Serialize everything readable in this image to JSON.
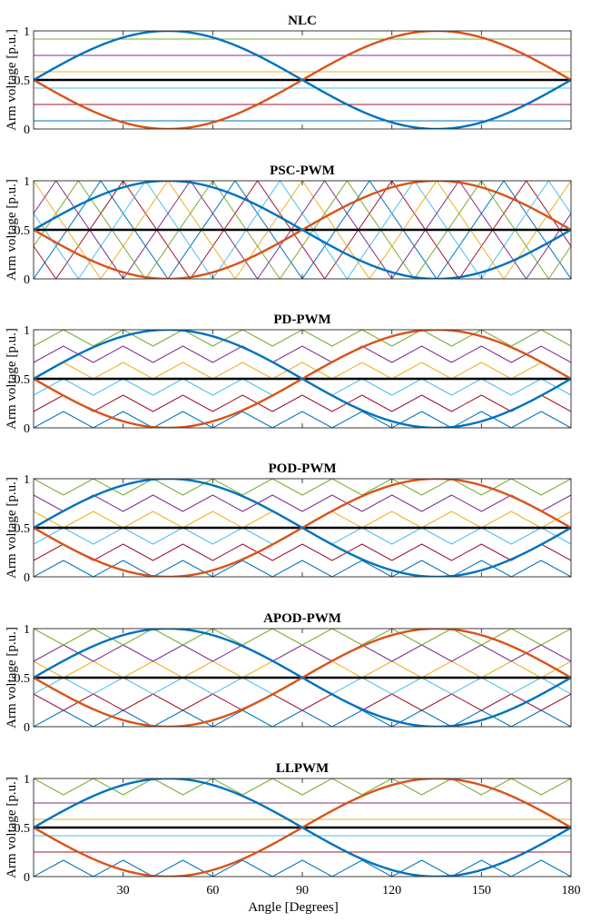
{
  "figure": {
    "xlabel": "Angle [Degrees]",
    "ylabel": "Arm voltage [p.u.]"
  },
  "colors": {
    "upper_arm": "#0072BD",
    "lower_arm": "#D95319",
    "reference": "#000000",
    "carrier_1": "#0072BD",
    "carrier_2": "#A2142F",
    "carrier_3": "#4DBEEE",
    "carrier_4": "#EDB120",
    "carrier_5": "#7E2F8E",
    "carrier_6": "#77AC30"
  },
  "chart_data": [
    {
      "type": "line",
      "title": "NLC",
      "carrier_scheme": "nlc_levels",
      "levels": [
        0.0833,
        0.25,
        0.4167,
        0.5833,
        0.75,
        0.9167
      ],
      "xlim": [
        0,
        180
      ],
      "ylim": [
        0,
        1
      ],
      "xticks": [
        30,
        60,
        90,
        120,
        150,
        180
      ],
      "yticks": [
        0,
        0.5,
        1
      ],
      "series": [
        {
          "role": "upper arm",
          "function": "0.5 + 0.5*sin(2*angle)"
        },
        {
          "role": "lower arm",
          "function": "0.5 - 0.5*sin(2*angle)"
        },
        {
          "role": "reference",
          "value": 0.5
        }
      ]
    },
    {
      "type": "line",
      "title": "PSC-PWM",
      "carrier_scheme": "phase_shifted",
      "carrier_count": 6,
      "carrier_periods": 4,
      "xlim": [
        0,
        180
      ],
      "ylim": [
        0,
        1
      ],
      "xticks": [
        30,
        60,
        90,
        120,
        150,
        180
      ],
      "yticks": [
        0,
        0.5,
        1
      ],
      "series": [
        {
          "role": "upper arm",
          "function": "0.5 + 0.5*sin(2*angle)"
        },
        {
          "role": "lower arm",
          "function": "0.5 - 0.5*sin(2*angle)"
        },
        {
          "role": "reference",
          "value": 0.5
        }
      ]
    },
    {
      "type": "line",
      "title": "PD-PWM",
      "carrier_scheme": "phase_disposition",
      "carrier_count": 6,
      "carrier_periods": 9,
      "xlim": [
        0,
        180
      ],
      "ylim": [
        0,
        1
      ],
      "xticks": [
        30,
        60,
        90,
        120,
        150,
        180
      ],
      "yticks": [
        0,
        0.5,
        1
      ],
      "series": [
        {
          "role": "upper arm",
          "function": "0.5 + 0.5*sin(2*angle)"
        },
        {
          "role": "lower arm",
          "function": "0.5 - 0.5*sin(2*angle)"
        },
        {
          "role": "reference",
          "value": 0.5
        }
      ]
    },
    {
      "type": "line",
      "title": "POD-PWM",
      "carrier_scheme": "phase_opposition_disposition",
      "carrier_count": 6,
      "carrier_periods": 9,
      "xlim": [
        0,
        180
      ],
      "ylim": [
        0,
        1
      ],
      "xticks": [
        30,
        60,
        90,
        120,
        150,
        180
      ],
      "yticks": [
        0,
        0.5,
        1
      ],
      "series": [
        {
          "role": "upper arm",
          "function": "0.5 + 0.5*sin(2*angle)"
        },
        {
          "role": "lower arm",
          "function": "0.5 - 0.5*sin(2*angle)"
        },
        {
          "role": "reference",
          "value": 0.5
        }
      ]
    },
    {
      "type": "line",
      "title": "APOD-PWM",
      "carrier_scheme": "alternative_phase_opposition_disposition",
      "carrier_count": 6,
      "carrier_periods": 9,
      "xlim": [
        0,
        180
      ],
      "ylim": [
        0,
        1
      ],
      "xticks": [
        30,
        60,
        90,
        120,
        150,
        180
      ],
      "yticks": [
        0,
        0.5,
        1
      ],
      "series": [
        {
          "role": "upper arm",
          "function": "0.5 + 0.5*sin(2*angle)"
        },
        {
          "role": "lower arm",
          "function": "0.5 - 0.5*sin(2*angle)"
        },
        {
          "role": "reference",
          "value": 0.5
        }
      ]
    },
    {
      "type": "line",
      "title": "LLPWM",
      "carrier_scheme": "low_level_pwm",
      "levels": [
        0.25,
        0.4167,
        0.5833,
        0.75
      ],
      "carrier_periods": 9,
      "xlim": [
        0,
        180
      ],
      "ylim": [
        0,
        1
      ],
      "xticks": [
        30,
        60,
        90,
        120,
        150,
        180
      ],
      "yticks": [
        0,
        0.5,
        1
      ],
      "series": [
        {
          "role": "upper arm",
          "function": "0.5 + 0.5*sin(2*angle)"
        },
        {
          "role": "lower arm",
          "function": "0.5 - 0.5*sin(2*angle)"
        },
        {
          "role": "reference",
          "value": 0.5
        }
      ]
    }
  ]
}
